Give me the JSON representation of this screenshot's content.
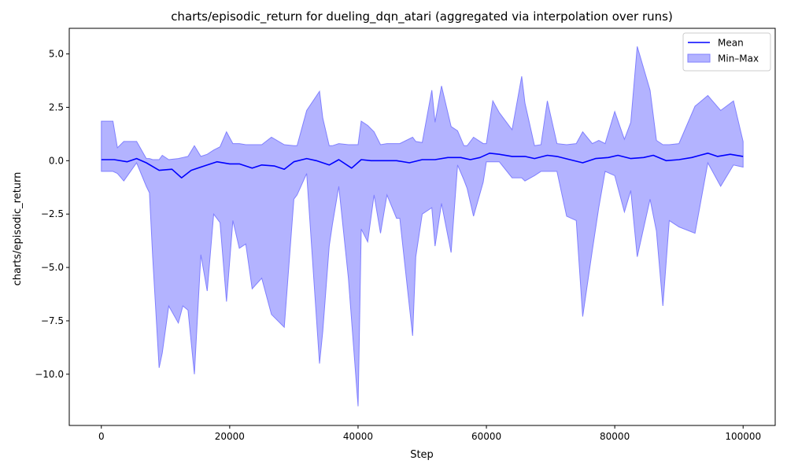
{
  "chart_data": {
    "type": "area",
    "title": "charts/episodic_return for dueling_dqn_atari (aggregated via interpolation over runs)",
    "xlabel": "Step",
    "ylabel": "charts/episodic_return",
    "xlim": [
      -5000,
      105000
    ],
    "ylim": [
      -12.4,
      6.2
    ],
    "x_ticks": [
      0,
      20000,
      40000,
      60000,
      80000,
      100000
    ],
    "x_tick_labels": [
      "0",
      "20000",
      "40000",
      "60000",
      "80000",
      "100000"
    ],
    "y_ticks": [
      5.0,
      2.5,
      0.0,
      -2.5,
      -5.0,
      -7.5,
      -10.0
    ],
    "y_tick_labels": [
      "5.0",
      "2.5",
      "0.0",
      "−2.5",
      "−5.0",
      "−7.5",
      "−10.0"
    ],
    "legend": {
      "placement": "top-right",
      "entries": [
        "Mean",
        "Min–Max"
      ]
    },
    "colors": {
      "mean": "#0000ff",
      "band": "#b3b3ff",
      "band_edge": "#8080ff"
    },
    "grid": false,
    "series": [
      {
        "name": "Mean",
        "x": [
          0,
          2000,
          4000,
          5500,
          7000,
          9000,
          11000,
          12500,
          14000,
          16000,
          18000,
          20000,
          21500,
          23500,
          25000,
          27000,
          28500,
          30000,
          32000,
          33500,
          35500,
          37000,
          39000,
          40500,
          42000,
          44000,
          46000,
          48000,
          50000,
          52000,
          54000,
          56000,
          57500,
          59000,
          60500,
          62000,
          64000,
          66000,
          67500,
          69500,
          71000,
          73000,
          75000,
          77000,
          79000,
          80500,
          82500,
          84500,
          86000,
          88000,
          90000,
          92000,
          94500,
          96000,
          98000,
          100000
        ],
        "values": [
          0.05,
          0.05,
          -0.05,
          0.1,
          -0.1,
          -0.45,
          -0.4,
          -0.8,
          -0.45,
          -0.25,
          -0.05,
          -0.15,
          -0.15,
          -0.35,
          -0.2,
          -0.25,
          -0.4,
          -0.05,
          0.1,
          0.0,
          -0.2,
          0.05,
          -0.35,
          0.05,
          0.0,
          0.0,
          0.0,
          -0.1,
          0.05,
          0.05,
          0.15,
          0.15,
          0.05,
          0.15,
          0.35,
          0.3,
          0.2,
          0.2,
          0.1,
          0.25,
          0.2,
          0.05,
          -0.1,
          0.1,
          0.15,
          0.25,
          0.1,
          0.15,
          0.25,
          0.0,
          0.05,
          0.15,
          0.35,
          0.2,
          0.3,
          0.2
        ]
      },
      {
        "name": "Min–Max",
        "x": [
          0,
          1800,
          2500,
          3500,
          5500,
          7000,
          7500,
          8000,
          9000,
          9500,
          10500,
          12000,
          12700,
          13500,
          14500,
          15500,
          16500,
          17500,
          18500,
          19500,
          20500,
          21500,
          22500,
          23500,
          25000,
          26500,
          28500,
          30000,
          30500,
          32000,
          34000,
          34500,
          35500,
          36000,
          37000,
          38500,
          40000,
          40500,
          41500,
          42500,
          43500,
          44500,
          46000,
          46500,
          48500,
          49000,
          50000,
          51500,
          52000,
          53000,
          54500,
          55500,
          56500,
          57000,
          58000,
          59500,
          60000,
          61000,
          62000,
          64000,
          65500,
          66000,
          67500,
          68500,
          69500,
          71000,
          72500,
          74000,
          75000,
          76500,
          77500,
          78500,
          80000,
          81500,
          82500,
          83500,
          85500,
          86500,
          87500,
          88500,
          90000,
          92500,
          94500,
          96500,
          98500,
          100000
        ],
        "min": [
          -0.5,
          -0.5,
          -0.6,
          -0.95,
          -0.1,
          -1.2,
          -1.5,
          -4.5,
          -9.7,
          -9.0,
          -6.8,
          -7.6,
          -6.8,
          -7.0,
          -10.0,
          -4.4,
          -6.1,
          -2.5,
          -2.9,
          -6.6,
          -2.8,
          -4.1,
          -3.9,
          -6.0,
          -5.5,
          -7.2,
          -7.8,
          -1.8,
          -1.6,
          -0.6,
          -9.5,
          -8.0,
          -4.0,
          -3.0,
          -1.2,
          -5.5,
          -11.5,
          -3.2,
          -3.8,
          -1.6,
          -3.4,
          -1.6,
          -2.7,
          -2.7,
          -8.2,
          -4.5,
          -2.5,
          -2.2,
          -4.0,
          -2.0,
          -4.3,
          -0.2,
          -0.9,
          -1.3,
          -2.6,
          -1.0,
          -0.05,
          -0.05,
          -0.05,
          -0.8,
          -0.8,
          -0.95,
          -0.7,
          -0.5,
          -0.5,
          -0.5,
          -2.6,
          -2.8,
          -7.3,
          -4.2,
          -2.2,
          -0.5,
          -0.7,
          -2.4,
          -1.4,
          -4.5,
          -1.8,
          -3.3,
          -6.8,
          -2.8,
          -3.1,
          -3.4,
          -0.1,
          -1.2,
          -0.2,
          -0.3
        ],
        "max": [
          1.85,
          1.85,
          0.6,
          0.9,
          0.9,
          0.1,
          0.1,
          0.05,
          0.05,
          0.25,
          0.05,
          0.1,
          0.15,
          0.2,
          0.7,
          0.2,
          0.3,
          0.5,
          0.65,
          1.35,
          0.8,
          0.8,
          0.75,
          0.75,
          0.75,
          1.1,
          0.75,
          0.7,
          0.7,
          2.35,
          3.25,
          2.0,
          0.7,
          0.7,
          0.8,
          0.75,
          0.75,
          1.85,
          1.65,
          1.35,
          0.75,
          0.8,
          0.8,
          0.8,
          1.1,
          0.9,
          0.85,
          3.3,
          1.8,
          3.5,
          1.6,
          1.4,
          0.7,
          0.7,
          1.1,
          0.8,
          0.8,
          2.8,
          2.25,
          1.45,
          3.95,
          2.7,
          0.7,
          0.75,
          2.8,
          0.8,
          0.75,
          0.8,
          1.35,
          0.8,
          0.95,
          0.8,
          2.3,
          1.0,
          1.8,
          5.35,
          3.3,
          0.95,
          0.75,
          0.75,
          0.8,
          2.55,
          3.05,
          2.35,
          2.8,
          0.9
        ]
      }
    ]
  }
}
